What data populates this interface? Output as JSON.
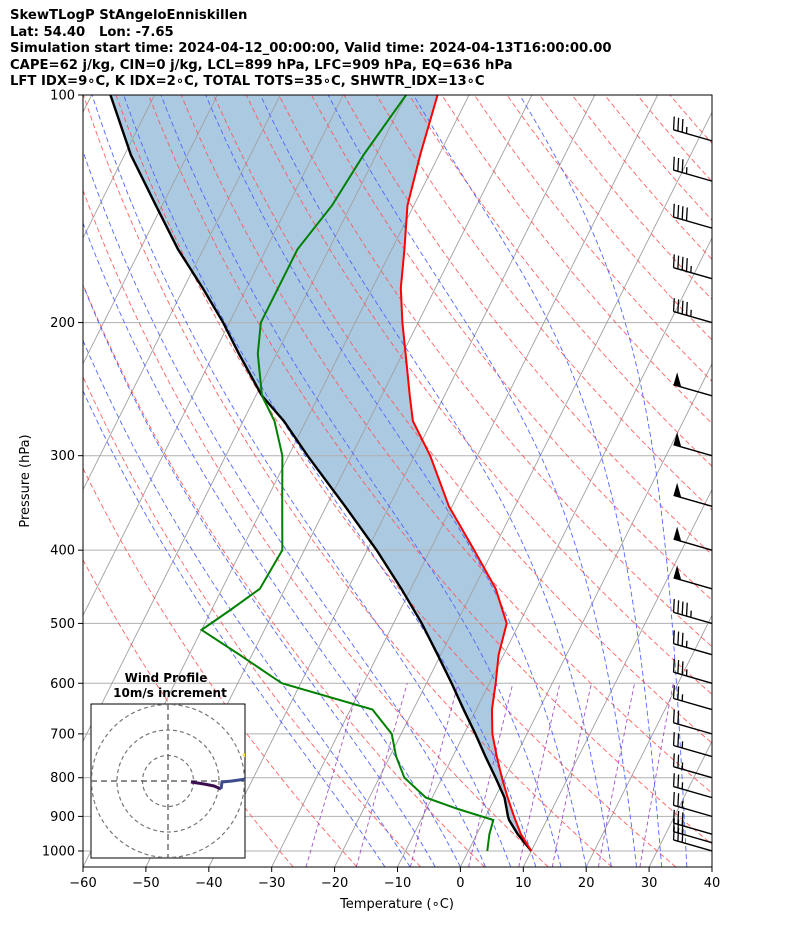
{
  "header": {
    "line1": "SkewTLogP StAngeloEnniskillen",
    "line2": "Lat: 54.40   Lon: -7.65",
    "line3": "Simulation start time: 2024-04-12_00:00:00, Valid time: 2024-04-13T16:00:00.00",
    "line4": "CAPE=62 j/kg, CIN=0 j/kg, LCL=899 hPa, LFC=909 hPa, EQ=636 hPa",
    "line5": "LFT IDX=9∘C, K IDX=2∘C, TOTAL TOTS=35∘C, SHWTR_IDX=13∘C"
  },
  "chart_data": {
    "type": "line",
    "subtype": "skew-T log-P diagram",
    "xlabel": "Temperature (∘C)",
    "ylabel": "Pressure (hPa)",
    "xlim": [
      -60,
      40
    ],
    "ylim": [
      1050,
      100
    ],
    "y_scale": "log",
    "x_ticks": [
      -60,
      -50,
      -40,
      -30,
      -20,
      -10,
      0,
      10,
      20,
      30,
      40
    ],
    "x_tick_labels": [
      "−60",
      "−50",
      "−40",
      "−30",
      "−20",
      "−10",
      "0",
      "10",
      "20",
      "30",
      "40"
    ],
    "y_ticks": [
      1000,
      900,
      800,
      700,
      600,
      500,
      400,
      300,
      200,
      100
    ],
    "y_tick_labels": [
      "1000",
      "900",
      "800",
      "700",
      "600",
      "500",
      "400",
      "300",
      "200",
      "100"
    ],
    "grid": true,
    "series": [
      {
        "role": "temperature",
        "color": "#ff0000",
        "points": [
          [
            10,
            1000
          ],
          [
            7,
            950
          ],
          [
            4.5,
            900
          ],
          [
            2,
            850
          ],
          [
            -0.5,
            800
          ],
          [
            -3,
            750
          ],
          [
            -5.5,
            700
          ],
          [
            -7.5,
            650
          ],
          [
            -9,
            600
          ],
          [
            -10.8,
            550
          ],
          [
            -12,
            500
          ],
          [
            -16.5,
            450
          ],
          [
            -23,
            400
          ],
          [
            -30.5,
            350
          ],
          [
            -37.5,
            300
          ],
          [
            -43,
            270
          ],
          [
            -45.5,
            250
          ],
          [
            -49.5,
            220
          ],
          [
            -52.5,
            200
          ],
          [
            -55.5,
            180
          ],
          [
            -58,
            160
          ],
          [
            -61,
            140
          ],
          [
            -63,
            120
          ],
          [
            -65,
            100
          ]
        ]
      },
      {
        "role": "dewpoint",
        "color": "#008000",
        "points": [
          [
            3,
            1000
          ],
          [
            2,
            950
          ],
          [
            1.5,
            910
          ],
          [
            -5,
            880
          ],
          [
            -11,
            850
          ],
          [
            -16,
            800
          ],
          [
            -19,
            750
          ],
          [
            -21.5,
            700
          ],
          [
            -26.5,
            650
          ],
          [
            -43,
            600
          ],
          [
            -52,
            550
          ],
          [
            -60,
            510
          ],
          [
            -57,
            480
          ],
          [
            -54,
            450
          ],
          [
            -53.5,
            400
          ],
          [
            -57,
            350
          ],
          [
            -61,
            300
          ],
          [
            -65,
            270
          ],
          [
            -69,
            250
          ],
          [
            -73,
            220
          ],
          [
            -75,
            200
          ],
          [
            -75,
            180
          ],
          [
            -75,
            160
          ],
          [
            -73,
            140
          ],
          [
            -72,
            120
          ],
          [
            -70,
            100
          ]
        ]
      },
      {
        "role": "parcel",
        "color": "#000000",
        "points": [
          [
            10,
            1000
          ],
          [
            6.5,
            950
          ],
          [
            4,
            910
          ],
          [
            3.5,
            899
          ],
          [
            1.5,
            850
          ],
          [
            -1.5,
            800
          ],
          [
            -4.8,
            750
          ],
          [
            -8.2,
            700
          ],
          [
            -12,
            650
          ],
          [
            -16,
            600
          ],
          [
            -20.5,
            550
          ],
          [
            -25.5,
            500
          ],
          [
            -31.5,
            450
          ],
          [
            -38.5,
            400
          ],
          [
            -47,
            350
          ],
          [
            -57,
            300
          ],
          [
            -63.5,
            270
          ],
          [
            -69,
            250
          ],
          [
            -76,
            220
          ],
          [
            -81,
            200
          ],
          [
            -87,
            180
          ],
          [
            -94,
            160
          ],
          [
            -101,
            140
          ],
          [
            -109,
            120
          ],
          [
            -117,
            100
          ]
        ]
      }
    ],
    "cape_shading": {
      "color": "#a6c7e0",
      "between": [
        "temperature",
        "parcel"
      ]
    },
    "wind_barbs": [
      {
        "p": 1000,
        "speed_kt": 30
      },
      {
        "p": 975,
        "speed_kt": 30
      },
      {
        "p": 950,
        "speed_kt": 30
      },
      {
        "p": 900,
        "speed_kt": 25
      },
      {
        "p": 850,
        "speed_kt": 25
      },
      {
        "p": 800,
        "speed_kt": 25
      },
      {
        "p": 750,
        "speed_kt": 25
      },
      {
        "p": 700,
        "speed_kt": 20
      },
      {
        "p": 650,
        "speed_kt": 25
      },
      {
        "p": 600,
        "speed_kt": 35
      },
      {
        "p": 550,
        "speed_kt": 35
      },
      {
        "p": 500,
        "speed_kt": 45
      },
      {
        "p": 450,
        "speed_kt": 50
      },
      {
        "p": 400,
        "speed_kt": 50
      },
      {
        "p": 350,
        "speed_kt": 50
      },
      {
        "p": 300,
        "speed_kt": 50
      },
      {
        "p": 250,
        "speed_kt": 50
      },
      {
        "p": 200,
        "speed_kt": 45
      },
      {
        "p": 175,
        "speed_kt": 45
      },
      {
        "p": 150,
        "speed_kt": 40
      },
      {
        "p": 130,
        "speed_kt": 35
      },
      {
        "p": 115,
        "speed_kt": 35
      }
    ],
    "inset": {
      "title": "Wind Profile",
      "subtitle": "10m/s increment",
      "rings": [
        10,
        20,
        30
      ],
      "hodograph_colors": [
        "#3b0f4f",
        "#3d4b8c",
        "#fde725"
      ]
    }
  }
}
